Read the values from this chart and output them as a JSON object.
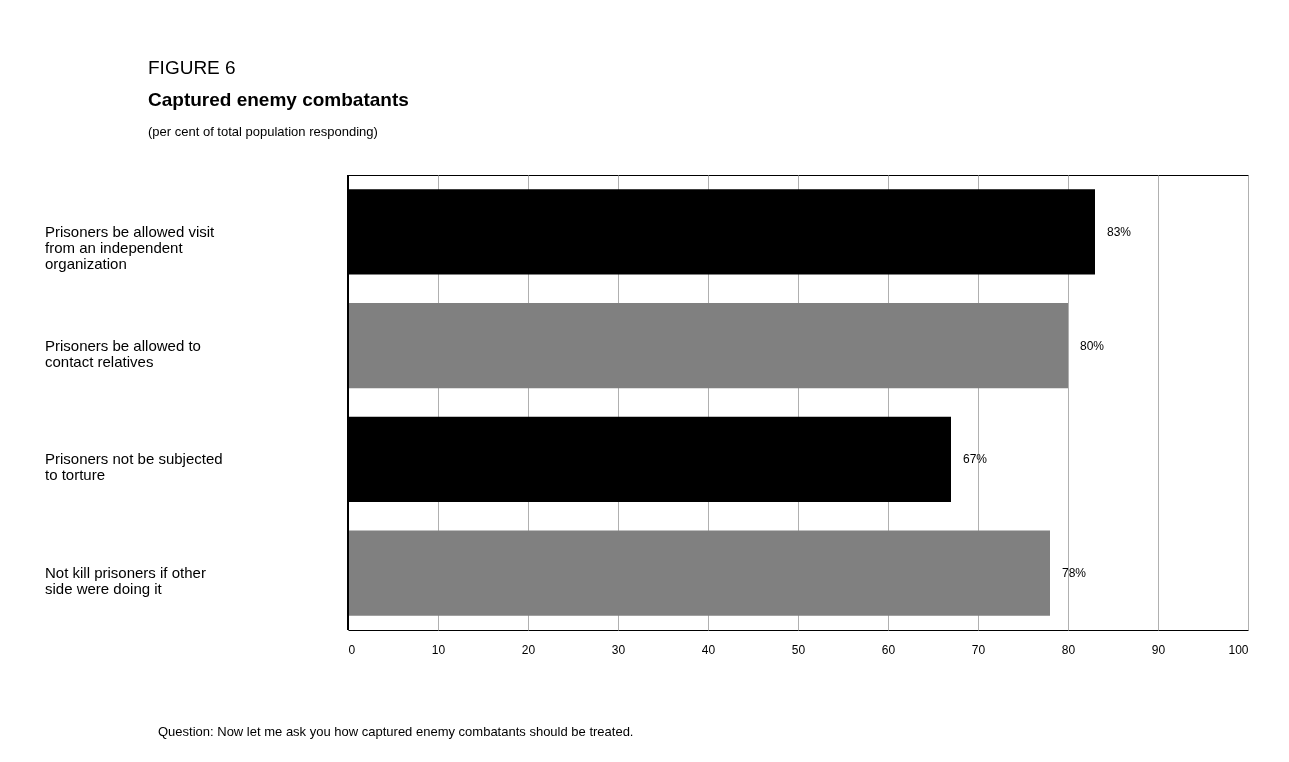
{
  "chart_data": {
    "type": "bar",
    "orientation": "horizontal",
    "title": "Captured enemy combatants",
    "subtitle": "(per cent of total population responding)",
    "annotations": [
      "FIGURE 6",
      "Question: Now let me ask you how captured enemy combatants should be treated."
    ],
    "categories": [
      "Prisoners be allowed visit from an independent organization",
      "Prisoners be allowed to contact relatives",
      "Prisoners not be subjected to torture",
      "Not kill prisoners if other side were doing it"
    ],
    "values": [
      83,
      80,
      67,
      78
    ],
    "colors": [
      "#000000",
      "#808080",
      "#000000",
      "#808080"
    ],
    "value_labels": [
      "83%",
      "80%",
      "67%",
      "78%"
    ],
    "xlim": [
      0,
      100
    ],
    "xticks": [
      0,
      10,
      20,
      30,
      40,
      50,
      60,
      70,
      80,
      90,
      100
    ],
    "grid": "x"
  }
}
